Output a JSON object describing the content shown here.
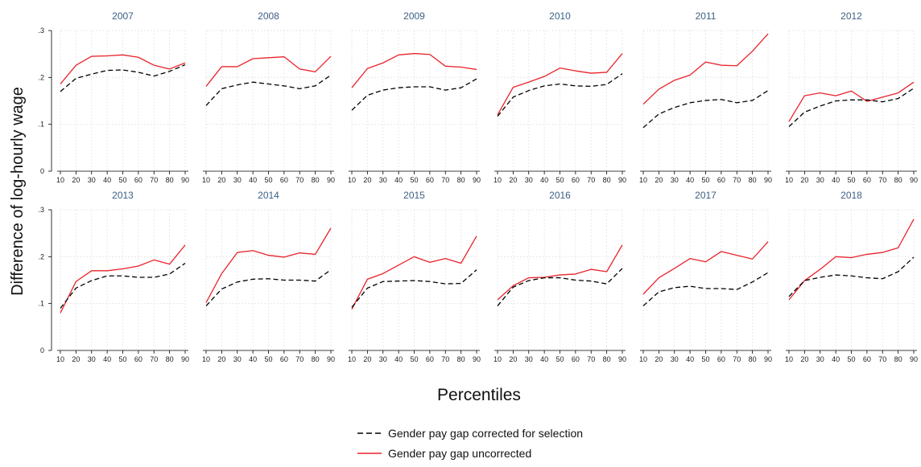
{
  "chart_data": {
    "type": "line",
    "ylabel": "Difference of log-hourly wage",
    "xlabel": "Percentiles",
    "x": [
      10,
      20,
      30,
      40,
      50,
      60,
      70,
      80,
      90
    ],
    "x_tick_labels": [
      "10",
      "20",
      "30",
      "40",
      "50",
      "60",
      "70",
      "80",
      "90"
    ],
    "ylim": [
      0,
      0.3
    ],
    "y_ticks": [
      0,
      0.1,
      0.2,
      0.3
    ],
    "y_tick_labels": [
      "0",
      ".1",
      ".2",
      ".3"
    ],
    "grid": true,
    "legend": {
      "placement": "bottom-center",
      "entries": [
        {
          "label": "Gender pay gap corrected for selection",
          "color": "#000000",
          "style": "dashed"
        },
        {
          "label": "Gender pay gap uncorrected",
          "color": "#e8232b",
          "style": "solid"
        }
      ]
    },
    "panels": [
      {
        "title": "2007",
        "corrected": [
          0.17,
          0.198,
          0.207,
          0.215,
          0.216,
          0.211,
          0.203,
          0.213,
          0.227
        ],
        "uncorrected": [
          0.186,
          0.226,
          0.245,
          0.246,
          0.248,
          0.243,
          0.226,
          0.218,
          0.231
        ]
      },
      {
        "title": "2008",
        "corrected": [
          0.14,
          0.176,
          0.184,
          0.19,
          0.186,
          0.182,
          0.176,
          0.182,
          0.205
        ],
        "uncorrected": [
          0.181,
          0.223,
          0.223,
          0.24,
          0.242,
          0.244,
          0.218,
          0.212,
          0.245
        ]
      },
      {
        "title": "2009",
        "corrected": [
          0.13,
          0.162,
          0.173,
          0.178,
          0.18,
          0.18,
          0.173,
          0.178,
          0.197
        ],
        "uncorrected": [
          0.178,
          0.219,
          0.231,
          0.248,
          0.251,
          0.249,
          0.224,
          0.222,
          0.217
        ]
      },
      {
        "title": "2010",
        "corrected": [
          0.117,
          0.158,
          0.172,
          0.182,
          0.186,
          0.182,
          0.181,
          0.185,
          0.208
        ],
        "uncorrected": [
          0.12,
          0.179,
          0.19,
          0.202,
          0.22,
          0.214,
          0.209,
          0.211,
          0.251
        ]
      },
      {
        "title": "2011",
        "corrected": [
          0.093,
          0.122,
          0.136,
          0.146,
          0.151,
          0.153,
          0.146,
          0.151,
          0.172
        ],
        "uncorrected": [
          0.143,
          0.175,
          0.194,
          0.205,
          0.233,
          0.226,
          0.225,
          0.256,
          0.293
        ]
      },
      {
        "title": "2012",
        "corrected": [
          0.095,
          0.126,
          0.139,
          0.15,
          0.152,
          0.152,
          0.148,
          0.155,
          0.177
        ],
        "uncorrected": [
          0.106,
          0.161,
          0.167,
          0.161,
          0.171,
          0.149,
          0.158,
          0.167,
          0.19
        ]
      },
      {
        "title": "2013",
        "corrected": [
          0.09,
          0.133,
          0.149,
          0.159,
          0.159,
          0.156,
          0.156,
          0.163,
          0.186
        ],
        "uncorrected": [
          0.08,
          0.147,
          0.17,
          0.17,
          0.174,
          0.18,
          0.193,
          0.184,
          0.225
        ]
      },
      {
        "title": "2014",
        "corrected": [
          0.095,
          0.131,
          0.146,
          0.152,
          0.153,
          0.15,
          0.15,
          0.148,
          0.172
        ],
        "uncorrected": [
          0.102,
          0.164,
          0.209,
          0.213,
          0.203,
          0.199,
          0.208,
          0.205,
          0.261
        ]
      },
      {
        "title": "2015",
        "corrected": [
          0.092,
          0.133,
          0.147,
          0.148,
          0.149,
          0.147,
          0.142,
          0.143,
          0.172
        ],
        "uncorrected": [
          0.088,
          0.152,
          0.164,
          0.182,
          0.2,
          0.188,
          0.196,
          0.186,
          0.244
        ]
      },
      {
        "title": "2016",
        "corrected": [
          0.095,
          0.135,
          0.149,
          0.155,
          0.155,
          0.15,
          0.148,
          0.142,
          0.175
        ],
        "uncorrected": [
          0.108,
          0.138,
          0.155,
          0.156,
          0.161,
          0.163,
          0.173,
          0.168,
          0.225
        ]
      },
      {
        "title": "2017",
        "corrected": [
          0.095,
          0.125,
          0.134,
          0.137,
          0.132,
          0.132,
          0.13,
          0.146,
          0.166
        ],
        "uncorrected": [
          0.12,
          0.155,
          0.175,
          0.196,
          0.189,
          0.211,
          0.203,
          0.195,
          0.232
        ]
      },
      {
        "title": "2018",
        "corrected": [
          0.115,
          0.149,
          0.156,
          0.161,
          0.159,
          0.155,
          0.153,
          0.168,
          0.199
        ],
        "uncorrected": [
          0.108,
          0.149,
          0.173,
          0.2,
          0.198,
          0.205,
          0.209,
          0.219,
          0.28
        ]
      }
    ]
  }
}
